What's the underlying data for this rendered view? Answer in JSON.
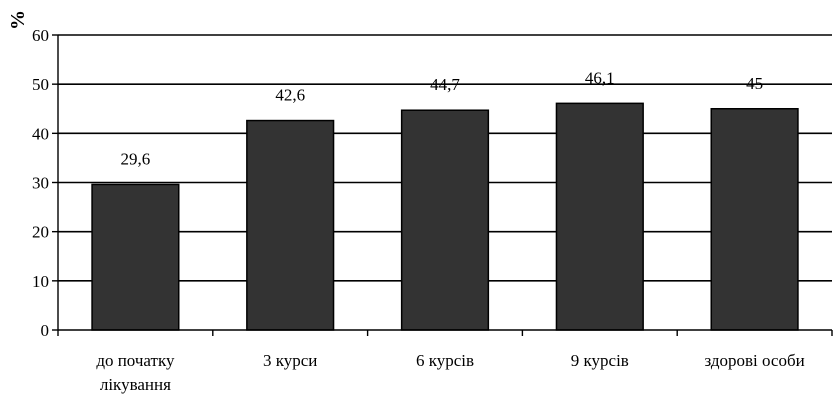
{
  "chart_data": {
    "type": "bar",
    "title": "",
    "xlabel": "",
    "ylabel": "%",
    "ylim": [
      0,
      60
    ],
    "yticks": [
      0,
      10,
      20,
      30,
      40,
      50,
      60
    ],
    "grid": true,
    "categories": [
      [
        "до початку",
        "лікування"
      ],
      [
        "3 курси"
      ],
      [
        "6 курсів"
      ],
      [
        "9 курсів"
      ],
      [
        "здорові особи"
      ]
    ],
    "values": [
      29.6,
      42.6,
      44.7,
      46.1,
      45
    ],
    "data_labels": [
      "29,6",
      "42,6",
      "44,7",
      "46,1",
      "45"
    ],
    "colors": {
      "bar": "#333333",
      "bar_stroke": "#000000",
      "grid": "#000000",
      "background": "#ffffff"
    }
  }
}
